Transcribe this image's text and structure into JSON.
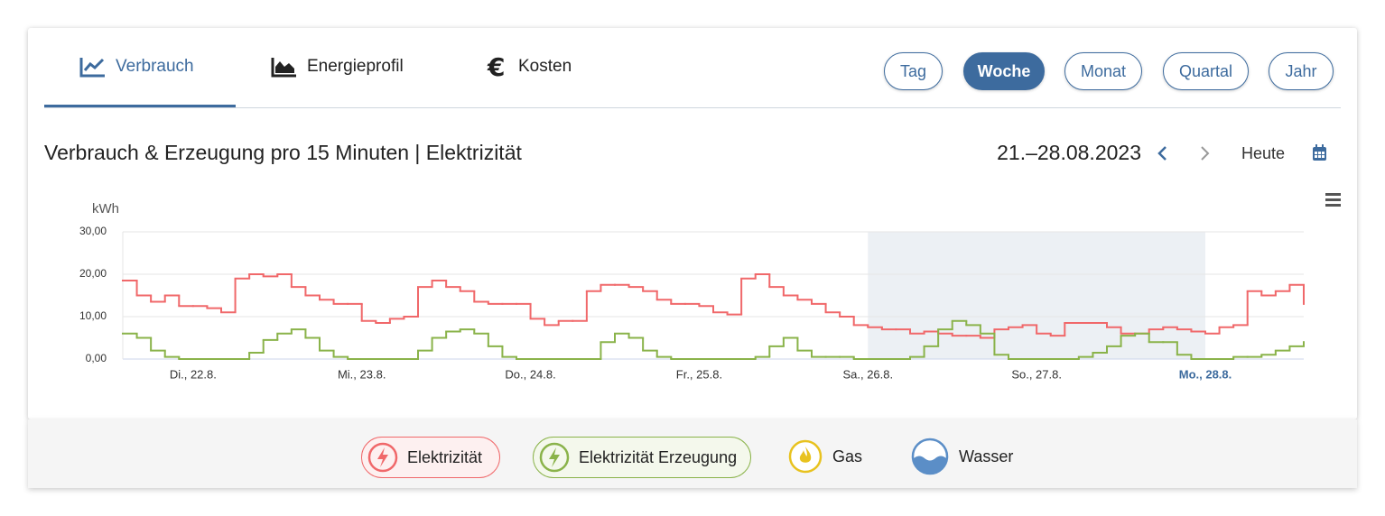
{
  "tabs": [
    "Verbrauch",
    "Energieprofil",
    "Kosten"
  ],
  "periods": [
    "Tag",
    "Woche",
    "Monat",
    "Quartal",
    "Jahr"
  ],
  "date_range": "21.–28.08.2023",
  "today_button": "Heute",
  "media": [
    "Gas",
    "Wasser"
  ],
  "chart_data": {
    "type": "step",
    "title": "Verbrauch & Erzeugung pro 15 Minuten | Elektrizität",
    "y_label": "kWh",
    "x": [
      14,
      16,
      18,
      20,
      22,
      24,
      26,
      28,
      30,
      32,
      34,
      36,
      38,
      40,
      42,
      44,
      46,
      48,
      50,
      52,
      54,
      56,
      58,
      60,
      62,
      64,
      66,
      68,
      70,
      72,
      74,
      76,
      78,
      80,
      82,
      84,
      86,
      88,
      90,
      92,
      94,
      96,
      98,
      100,
      102,
      104,
      106,
      108,
      110,
      112,
      114,
      116,
      118,
      120,
      122,
      124,
      126,
      128,
      130,
      132,
      134,
      136,
      138,
      140,
      142,
      144,
      146,
      148,
      150,
      152,
      154,
      156,
      158,
      160,
      162,
      164,
      166,
      168,
      170,
      172,
      174,
      176,
      178,
      180,
      182
    ],
    "xlim": [
      14,
      182
    ],
    "xticks": [
      {
        "value": 24,
        "label": "Di., 22.8."
      },
      {
        "value": 48,
        "label": "Mi., 23.8."
      },
      {
        "value": 72,
        "label": "Do., 24.8."
      },
      {
        "value": 96,
        "label": "Fr., 25.8."
      },
      {
        "value": 120,
        "label": "Sa., 26.8."
      },
      {
        "value": 144,
        "label": "So., 27.8."
      },
      {
        "value": 168,
        "label": "Mo., 28.8."
      }
    ],
    "ylim": [
      0,
      30
    ],
    "yticks": [
      {
        "value": 0,
        "label": "0,00"
      },
      {
        "value": 10,
        "label": "10,00"
      },
      {
        "value": 20,
        "label": "20,00"
      },
      {
        "value": 30,
        "label": "30,00"
      }
    ],
    "grid": true,
    "weekend_band": [
      120,
      168
    ],
    "band_color": "#ecf0f4",
    "series": [
      {
        "name": "Elektrizität",
        "color": "#f0686a",
        "values": [
          18.5,
          15,
          13.5,
          15,
          12.5,
          12.5,
          12,
          11,
          19,
          20,
          19.5,
          20,
          17,
          15,
          14,
          13,
          13,
          9,
          8.5,
          9.5,
          10,
          17,
          18.5,
          17,
          16,
          13.5,
          13,
          13,
          13,
          9.5,
          8,
          9,
          9,
          16,
          17.5,
          17.5,
          17,
          16,
          14,
          13,
          13,
          12.5,
          11,
          10.5,
          19,
          20,
          17,
          15,
          14,
          13,
          11,
          10,
          8,
          7.5,
          7,
          7,
          6,
          6.5,
          6,
          5.5,
          5.5,
          5,
          7,
          7.5,
          8,
          6,
          5.5,
          8.5,
          8.5,
          8.5,
          7.5,
          6,
          6,
          7,
          7.5,
          7,
          6.5,
          6,
          7.5,
          8,
          16,
          15,
          16,
          17.5,
          13
        ]
      },
      {
        "name": "Elektrizität Erzeugung",
        "color": "#8ab34a",
        "values": [
          6,
          5,
          2,
          0.5,
          0,
          0,
          0,
          0,
          0,
          1.5,
          4.5,
          6,
          7,
          5,
          2,
          0.5,
          0,
          0,
          0,
          0,
          0,
          2,
          5,
          6.5,
          7,
          6,
          3,
          0.5,
          0,
          0,
          0,
          0,
          0,
          0,
          4,
          6,
          5,
          2,
          0.5,
          0,
          0,
          0,
          0,
          0,
          0,
          0.5,
          3,
          5,
          2,
          0.5,
          0.5,
          0.5,
          0,
          0,
          0,
          0,
          0.5,
          3,
          7,
          9,
          8,
          6,
          1,
          0,
          0,
          0,
          0,
          0,
          0.5,
          1.5,
          3,
          5.5,
          6,
          4,
          4,
          1,
          0,
          0,
          0,
          0.5,
          0.5,
          1,
          2,
          3,
          4
        ]
      }
    ]
  }
}
